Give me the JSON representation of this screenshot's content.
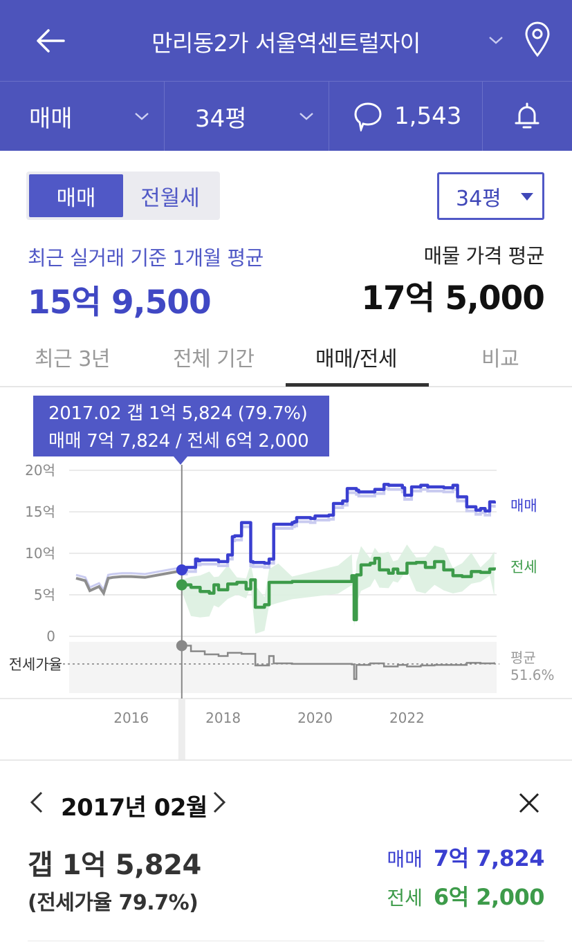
{
  "header": {
    "title": "만리동2가 서울역센트럴자이",
    "colors": {
      "bar": "#4d54bb",
      "text": "#ffffff"
    }
  },
  "subbar": {
    "trade_type": "매매",
    "area": "34평",
    "comment_count": "1,543"
  },
  "segment": {
    "buy": "매매",
    "rent": "전월세"
  },
  "area_select": "34평",
  "summary": {
    "recent_label": "최근 실거래 기준 1개월 평균",
    "recent_value": "15억 9,500",
    "listing_label": "매물 가격 평균",
    "listing_value": "17억 5,000"
  },
  "tabs": [
    "최근 3년",
    "전체 기간",
    "매매/전세",
    "비교"
  ],
  "active_tab": 2,
  "tooltip": {
    "line1": "2017.02  갭 1억 5,824 (79.7%)",
    "line2": "매매 7억 7,824 / 전세 6억 2,000"
  },
  "chart_data": {
    "type": "line",
    "y_ticks": [
      "20억",
      "15억",
      "10억",
      "5억",
      "0"
    ],
    "ylim": [
      0,
      20
    ],
    "x_ticks": [
      "2016",
      "2018",
      "2020",
      "2022"
    ],
    "ratio_axis_label": "전세가율",
    "ratio_avg_label": "평균",
    "ratio_avg_value": "51.6%",
    "colors": {
      "sale": "#3a3fd0",
      "jeonse": "#3d9b4a",
      "ratio": "#888888",
      "pre": "#8e8e8e"
    },
    "series": [
      {
        "name": "매매",
        "unit": "억",
        "x": [
          2014.8,
          2015.0,
          2015.1,
          2015.3,
          2015.4,
          2015.5,
          2015.6,
          2015.8,
          2016.0,
          2016.3,
          2016.6,
          2016.8,
          2017.0,
          2017.1,
          2017.2,
          2017.4,
          2017.45,
          2017.5,
          2017.9,
          2018.1,
          2018.2,
          2018.25,
          2018.4,
          2018.6,
          2018.65,
          2018.9,
          2019.0,
          2019.1,
          2019.5,
          2019.55,
          2019.6,
          2019.9,
          2020.0,
          2020.3,
          2020.4,
          2020.6,
          2020.7,
          2020.8,
          2020.9,
          2020.95,
          2021.3,
          2021.5,
          2021.6,
          2021.9,
          2021.95,
          2022.1,
          2022.3,
          2022.4,
          2022.45,
          2022.6,
          2022.8,
          2023.0,
          2023.1,
          2023.3,
          2023.5,
          2023.6,
          2023.7,
          2023.8,
          2023.9
        ],
        "values": [
          7.0,
          6.7,
          5.5,
          6.0,
          5.2,
          7.0,
          7.1,
          7.2,
          7.2,
          7.1,
          7.4,
          7.6,
          7.8,
          8.0,
          8.3,
          9.3,
          9.1,
          9.2,
          9.0,
          9.8,
          12.0,
          12.1,
          13.7,
          9.0,
          8.9,
          8.8,
          9.3,
          13.5,
          13.7,
          13.8,
          14.3,
          14.2,
          14.5,
          14.6,
          16.0,
          16.3,
          17.8,
          17.8,
          17.6,
          17.4,
          17.7,
          18.3,
          18.2,
          17.9,
          17.0,
          18.0,
          18.2,
          18.2,
          18.0,
          18.0,
          17.9,
          18.2,
          16.8,
          15.6,
          15.2,
          15.4,
          15.1,
          16.2,
          16.0
        ]
      },
      {
        "name": "전세",
        "unit": "억",
        "x": [
          2017.1,
          2017.3,
          2017.5,
          2017.7,
          2017.8,
          2017.9,
          2018.1,
          2018.3,
          2018.5,
          2018.6,
          2018.7,
          2018.9,
          2019.0,
          2019.2,
          2019.5,
          2020.0,
          2020.5,
          2020.8,
          2020.85,
          2020.9,
          2021.0,
          2021.2,
          2021.3,
          2021.4,
          2021.6,
          2021.7,
          2021.8,
          2022.0,
          2022.2,
          2022.4,
          2022.6,
          2022.8,
          2023.0,
          2023.2,
          2023.4,
          2023.6,
          2023.8,
          2023.9
        ],
        "values": [
          6.2,
          5.9,
          5.4,
          5.2,
          6.2,
          5.6,
          6.3,
          6.5,
          5.7,
          6.8,
          3.5,
          3.8,
          6.5,
          6.5,
          6.6,
          6.6,
          6.6,
          7.3,
          2.0,
          7.4,
          8.6,
          8.8,
          9.4,
          8.0,
          7.6,
          8.1,
          7.6,
          8.8,
          8.9,
          8.3,
          9.0,
          8.0,
          7.3,
          7.2,
          7.8,
          7.7,
          8.1,
          8.3
        ]
      },
      {
        "name": "전세가율",
        "unit": "%",
        "x": [
          2017.1,
          2017.3,
          2017.6,
          2017.9,
          2018.1,
          2018.4,
          2018.7,
          2019.0,
          2019.1,
          2019.5,
          2020.0,
          2020.5,
          2020.8,
          2020.85,
          2020.9,
          2021.2,
          2021.5,
          2021.8,
          2022.0,
          2022.3,
          2022.6,
          2023.0,
          2023.3,
          2023.6,
          2023.9
        ],
        "values": [
          79.7,
          69,
          63,
          60,
          66,
          64,
          42,
          60,
          46,
          45,
          45,
          45,
          44,
          16,
          43,
          46,
          40,
          43,
          40,
          42,
          43,
          43,
          47,
          46,
          48
        ]
      }
    ]
  },
  "detail": {
    "date": "2017년 02월",
    "gap": "갭 1억 5,824",
    "ratio": "(전세가율 79.7%)",
    "sale_label": "매매",
    "sale_value": "7억 7,824",
    "jeonse_label": "전세",
    "jeonse_value": "6억 2,000"
  }
}
